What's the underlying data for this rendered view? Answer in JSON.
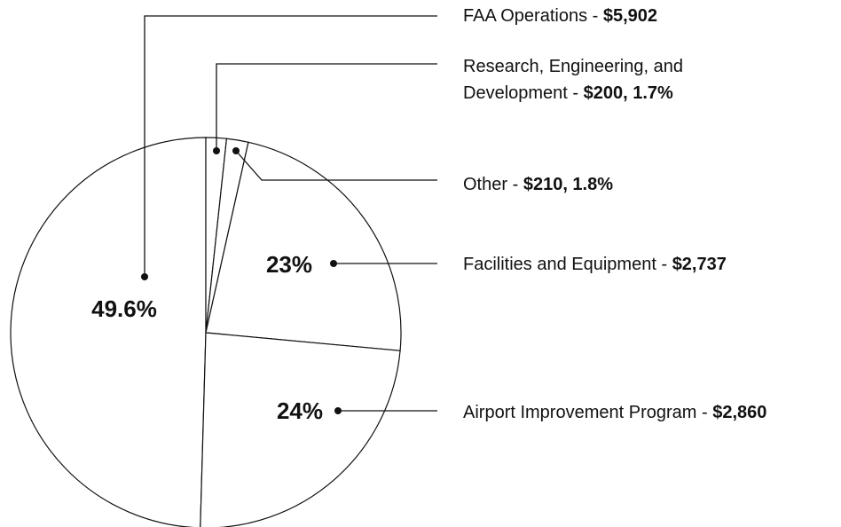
{
  "chart_data": {
    "type": "pie",
    "categories": [
      "FAA Operations",
      "Research, Engineering, and Development",
      "Other",
      "Facilities and Equipment",
      "Airport Improvement Program"
    ],
    "values": [
      49.6,
      1.7,
      1.8,
      23,
      24
    ],
    "value_labels": [
      "49.6%",
      null,
      null,
      "23%",
      "24%"
    ],
    "separator": "-",
    "amounts": [
      "$5,902",
      "$200, 1.7%",
      "$210, 1.8%",
      "$2,737",
      "$2,860"
    ],
    "color": "#ffffff"
  }
}
